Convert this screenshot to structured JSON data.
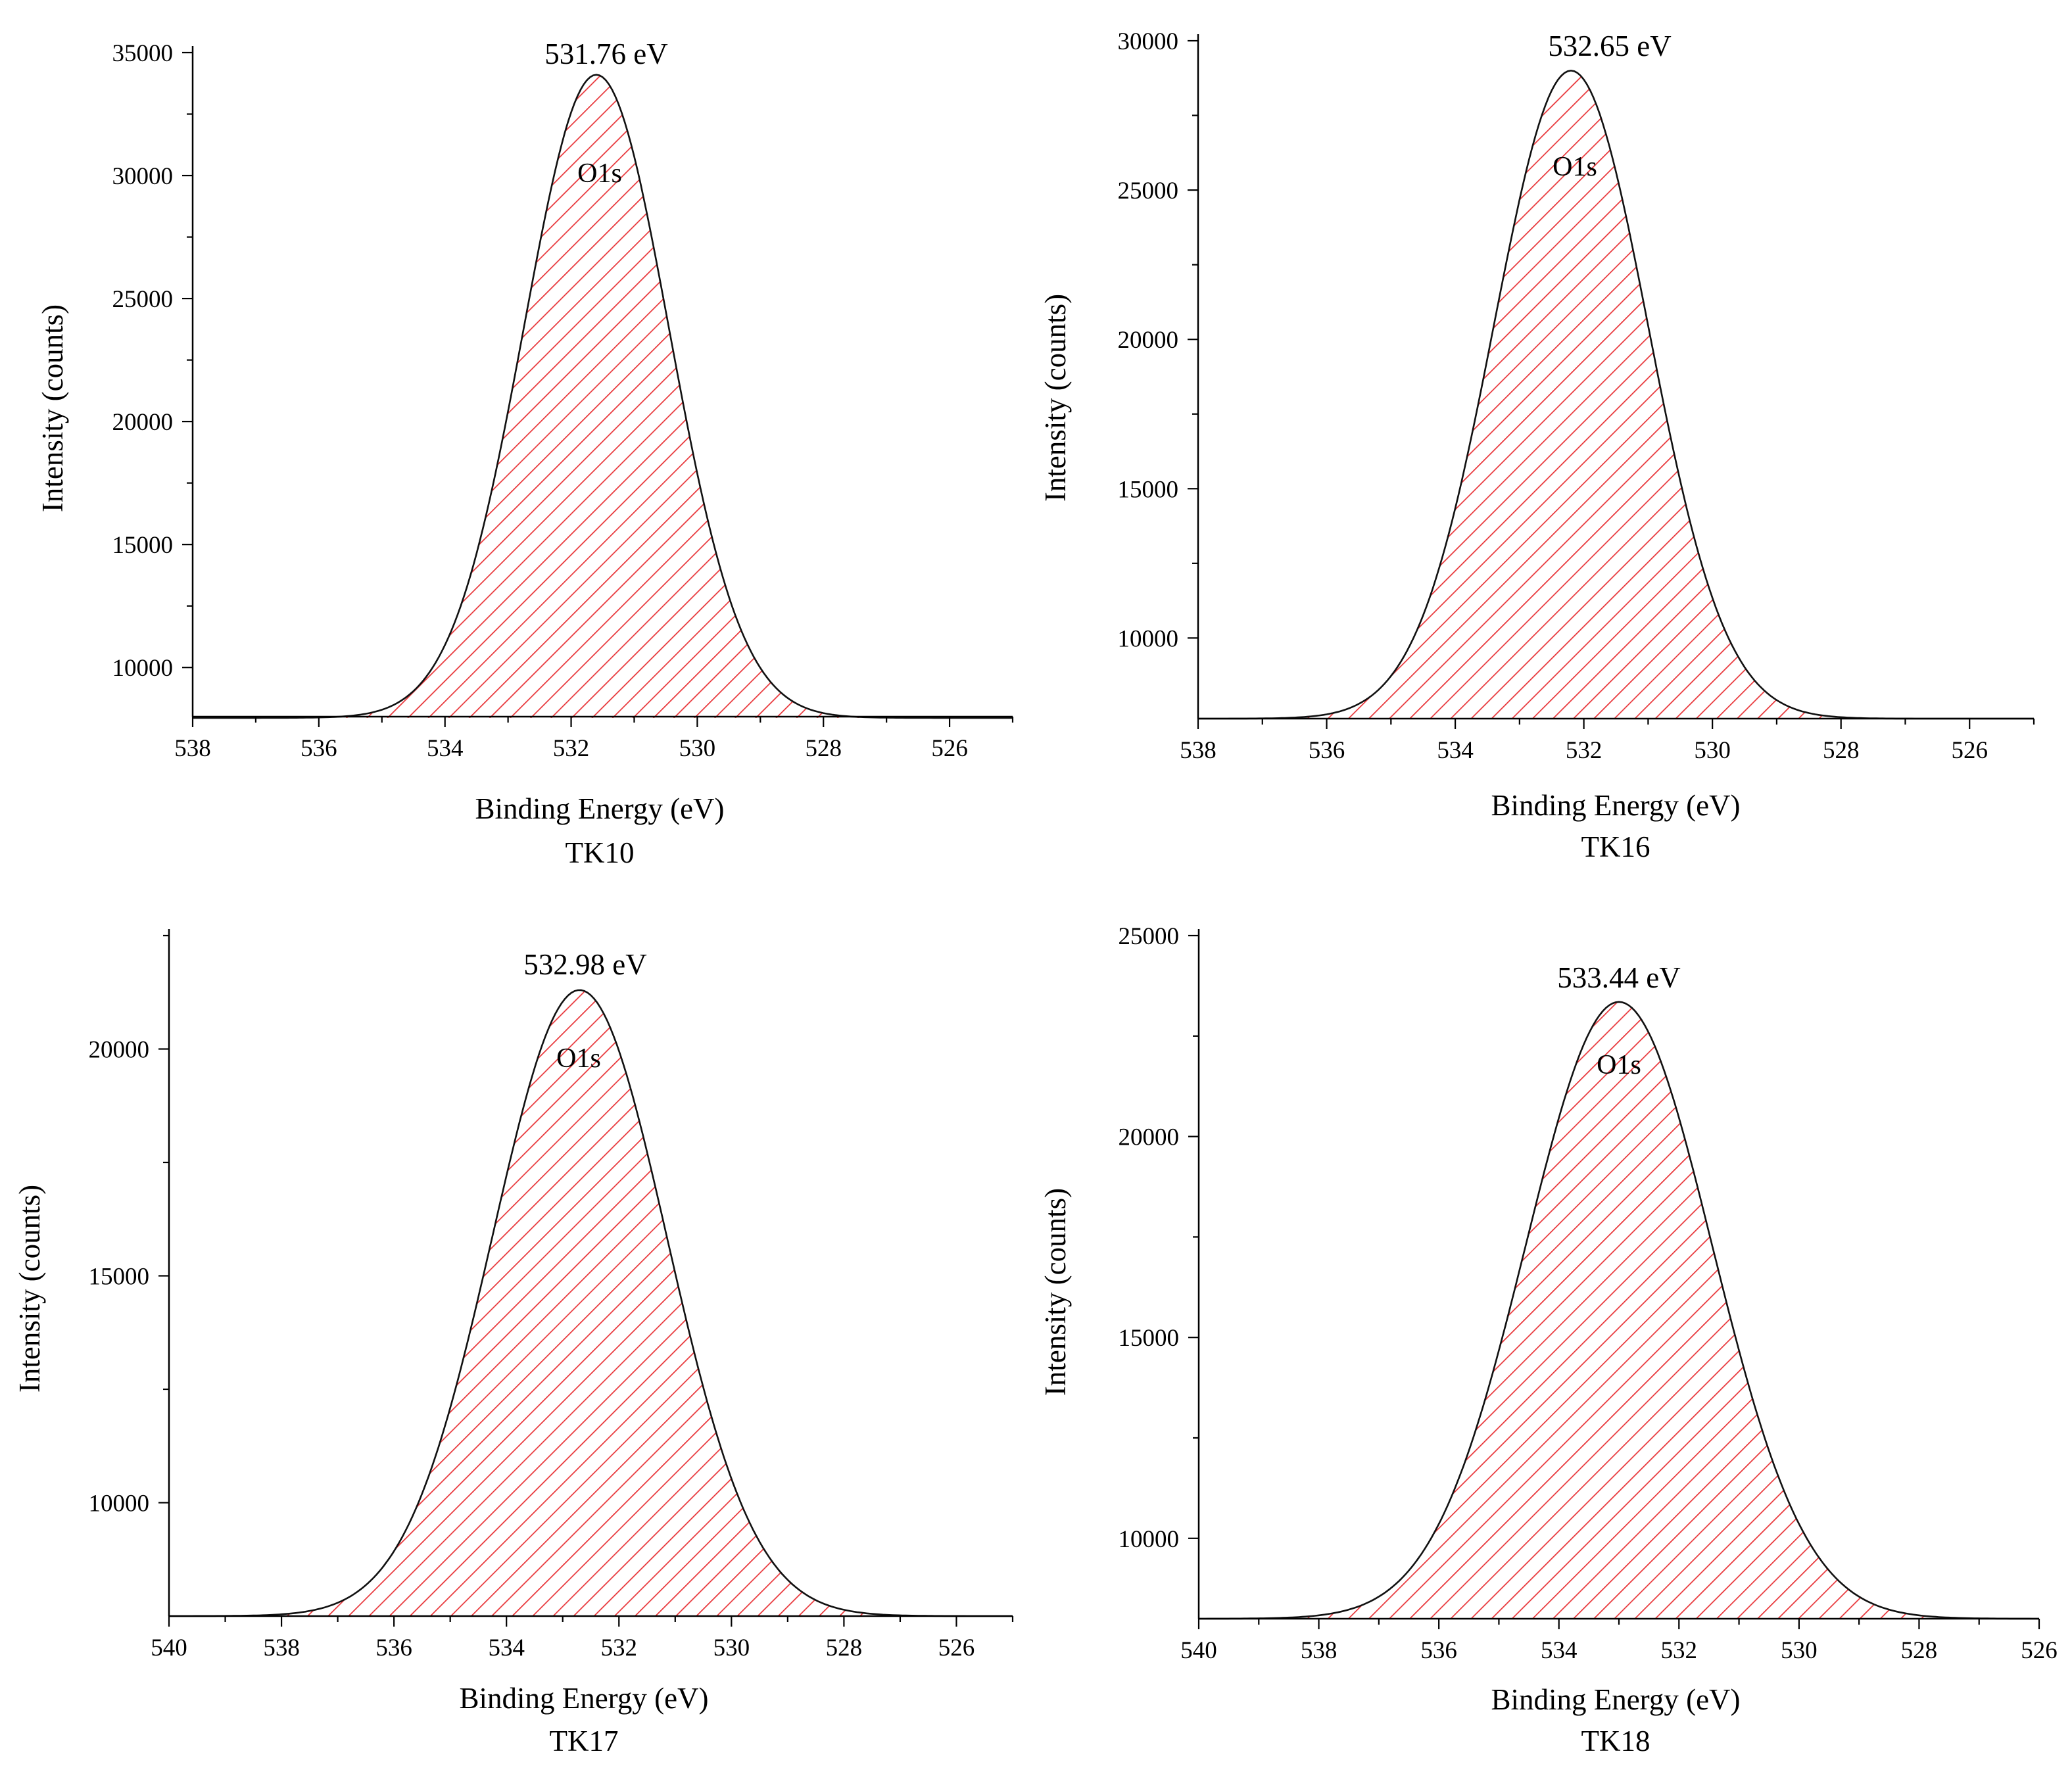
{
  "figure": {
    "x_title": "Binding Energy (eV)",
    "y_title": "Intensity (counts)"
  },
  "colors": {
    "hatch": "#e8363a",
    "curve": "#111111",
    "axis": "#000000"
  },
  "chart_data": [
    {
      "type": "area",
      "title": "TK10",
      "xlabel": "Binding Energy (eV)",
      "ylabel": "Intensity (counts)",
      "xlim": [
        538,
        525
      ],
      "ylim": [
        8000,
        35000
      ],
      "x_ticks": [
        538,
        536,
        534,
        532,
        530,
        528,
        526
      ],
      "y_ticks": [
        10000,
        15000,
        20000,
        25000,
        30000,
        35000
      ],
      "y_minor_ticks": [
        32500,
        27500,
        22500,
        17500,
        12500
      ],
      "peak_label": "531.76 eV",
      "species_label": "O1s",
      "series": [
        {
          "name": "O1s",
          "center": 531.6,
          "sigma": 1.15,
          "baseline": 7950,
          "peak": 34100,
          "tail_start": 538,
          "tail_end": 525
        }
      ]
    },
    {
      "type": "area",
      "title": "TK16",
      "xlabel": "Binding Energy (eV)",
      "ylabel": "Intensity (counts)",
      "xlim": [
        538,
        525
      ],
      "ylim": [
        7300,
        30000
      ],
      "x_ticks": [
        538,
        536,
        534,
        532,
        530,
        528,
        526
      ],
      "y_ticks": [
        10000,
        15000,
        20000,
        25000,
        30000
      ],
      "y_minor_ticks": [
        27500,
        22500,
        17500,
        12500
      ],
      "peak_label": "532.65 eV",
      "species_label": "O1s",
      "series": [
        {
          "name": "O1s",
          "center": 532.2,
          "sigma": 1.2,
          "baseline": 7300,
          "peak": 29000,
          "tail_start": 538,
          "tail_end": 525
        }
      ]
    },
    {
      "type": "area",
      "title": "TK17",
      "xlabel": "Binding Energy (eV)",
      "ylabel": "Intensity (counts)",
      "xlim": [
        540,
        525
      ],
      "ylim": [
        7500,
        22500
      ],
      "x_ticks": [
        540,
        538,
        536,
        534,
        532,
        530,
        528,
        526
      ],
      "y_ticks": [
        10000,
        15000,
        20000
      ],
      "y_minor_ticks": [
        12500,
        17500,
        22500
      ],
      "peak_label": "532.98 eV",
      "species_label": "O1s",
      "series": [
        {
          "name": "O1s",
          "center": 532.7,
          "sigma": 1.55,
          "baseline": 7500,
          "peak": 21300,
          "tail_start": 540,
          "tail_end": 525
        }
      ]
    },
    {
      "type": "area",
      "title": "TK18",
      "xlabel": "Binding Energy (eV)",
      "ylabel": "Intensity (counts)",
      "xlim": [
        540,
        526
      ],
      "ylim": [
        8000,
        25000
      ],
      "x_ticks": [
        540,
        538,
        536,
        534,
        532,
        530,
        528,
        526
      ],
      "y_ticks": [
        10000,
        15000,
        20000,
        25000
      ],
      "y_minor_ticks": [
        22500,
        17500,
        12500
      ],
      "peak_label": "533.44 eV",
      "species_label": "O1s",
      "series": [
        {
          "name": "O1s",
          "center": 533.0,
          "sigma": 1.55,
          "baseline": 8000,
          "peak": 23350,
          "tail_start": 540,
          "tail_end": 526
        }
      ]
    }
  ]
}
